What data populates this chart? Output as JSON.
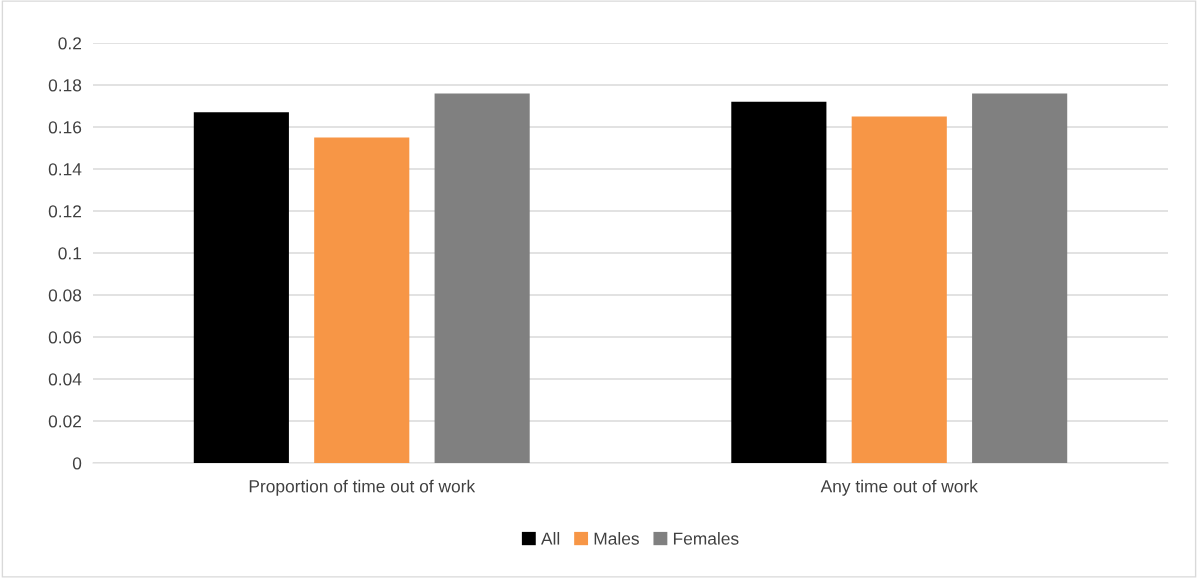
{
  "chart_data": {
    "type": "bar",
    "categories": [
      "Proportion of time out of work",
      "Any time out of work"
    ],
    "series": [
      {
        "name": "All",
        "color": "#000000",
        "values": [
          0.167,
          0.172
        ]
      },
      {
        "name": "Males",
        "color": "#f79646",
        "values": [
          0.155,
          0.165
        ]
      },
      {
        "name": "Females",
        "color": "#808080",
        "values": [
          0.176,
          0.176
        ]
      }
    ],
    "ylim": [
      0,
      0.2
    ],
    "yticks": [
      0,
      0.02,
      0.04,
      0.06,
      0.08,
      0.1,
      0.12,
      0.14,
      0.16,
      0.18,
      0.2
    ],
    "grid": "y",
    "legend": "bottom"
  }
}
